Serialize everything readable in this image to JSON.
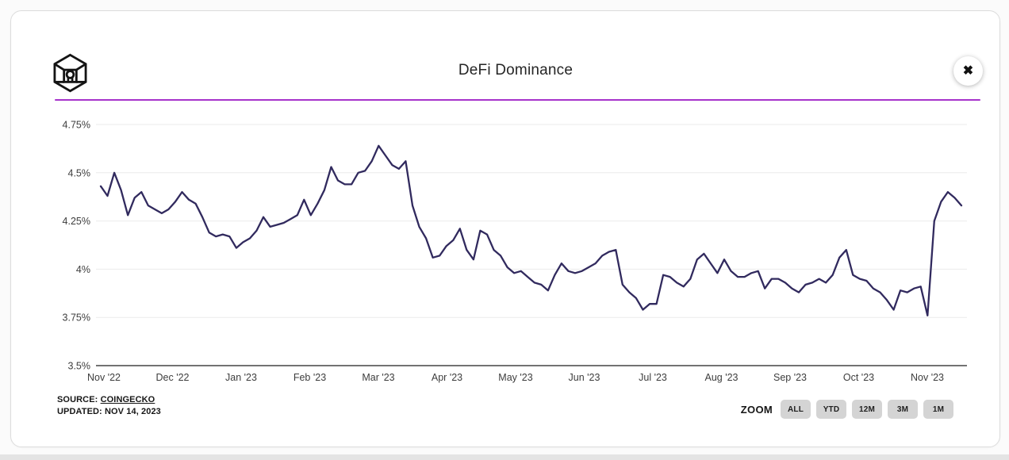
{
  "header": {
    "title": "DeFi Dominance",
    "close_glyph": "✖",
    "logo_name": "the-block-logo",
    "accent_rule_color": "#a733cb"
  },
  "chart_data": {
    "type": "line",
    "title": "DeFi Dominance",
    "xlabel": "",
    "ylabel": "",
    "x_range": [
      "Nov 1, 2022",
      "Nov 14, 2023"
    ],
    "ylim": [
      3.5,
      4.75
    ],
    "grid": true,
    "legend_position": "none",
    "line_color": "#312a5e",
    "x_ticks": [
      "Nov '22",
      "Dec '22",
      "Jan '23",
      "Feb '23",
      "Mar '23",
      "Apr '23",
      "May '23",
      "Jun '23",
      "Jul '23",
      "Aug '23",
      "Sep '23",
      "Oct '23",
      "Nov '23"
    ],
    "y_ticks": [
      {
        "label": "4.75%",
        "value": 4.75
      },
      {
        "label": "4.5%",
        "value": 4.5
      },
      {
        "label": "4.25%",
        "value": 4.25
      },
      {
        "label": "4%",
        "value": 4.0
      },
      {
        "label": "3.75%",
        "value": 3.75
      },
      {
        "label": "3.5%",
        "value": 3.5
      }
    ],
    "series": [
      {
        "name": "DeFi Dominance",
        "unit": "%",
        "sampling": "approx. every 3 days, Nov 1 2022 - Nov 14 2023",
        "values": [
          4.43,
          4.38,
          4.5,
          4.41,
          4.28,
          4.37,
          4.4,
          4.33,
          4.31,
          4.29,
          4.31,
          4.35,
          4.4,
          4.36,
          4.34,
          4.27,
          4.19,
          4.17,
          4.18,
          4.17,
          4.11,
          4.14,
          4.16,
          4.2,
          4.27,
          4.22,
          4.23,
          4.24,
          4.26,
          4.28,
          4.36,
          4.28,
          4.34,
          4.41,
          4.53,
          4.46,
          4.44,
          4.44,
          4.5,
          4.51,
          4.56,
          4.64,
          4.59,
          4.54,
          4.52,
          4.56,
          4.33,
          4.22,
          4.16,
          4.06,
          4.07,
          4.12,
          4.15,
          4.21,
          4.1,
          4.05,
          4.2,
          4.18,
          4.1,
          4.07,
          4.01,
          3.98,
          3.99,
          3.96,
          3.93,
          3.92,
          3.89,
          3.97,
          4.03,
          3.99,
          3.98,
          3.99,
          4.01,
          4.03,
          4.07,
          4.09,
          4.1,
          3.92,
          3.88,
          3.85,
          3.79,
          3.82,
          3.82,
          3.97,
          3.96,
          3.93,
          3.91,
          3.95,
          4.05,
          4.08,
          4.03,
          3.98,
          4.05,
          3.99,
          3.96,
          3.96,
          3.98,
          3.99,
          3.9,
          3.95,
          3.95,
          3.93,
          3.9,
          3.88,
          3.92,
          3.93,
          3.95,
          3.93,
          3.97,
          4.06,
          4.1,
          3.97,
          3.95,
          3.94,
          3.9,
          3.88,
          3.84,
          3.79,
          3.89,
          3.88,
          3.9,
          3.91,
          3.76,
          4.25,
          4.35,
          4.4,
          4.37,
          4.33
        ]
      }
    ]
  },
  "footer": {
    "source_label": "SOURCE:",
    "source_link": "COINGECKO",
    "updated": "UPDATED: NOV 14, 2023",
    "zoom_label": "ZOOM",
    "zoom_buttons": [
      "ALL",
      "YTD",
      "12M",
      "3M",
      "1M"
    ]
  },
  "colors": {
    "accent_rule": "#a733cb",
    "series_line": "#312a5e",
    "grid_line": "#ebebeb",
    "axis_line": "#444444",
    "axis_text": "#3d3d3d",
    "button_bg": "#d4d4d4",
    "card_border": "#dcdcdc"
  }
}
